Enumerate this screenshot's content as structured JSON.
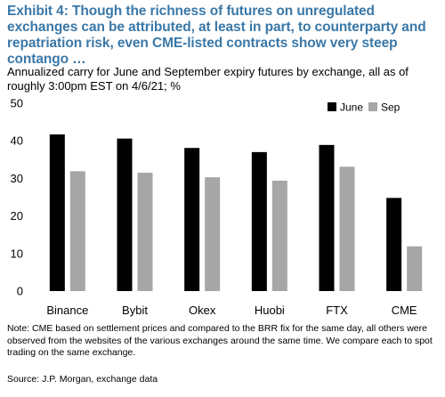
{
  "title": "Exhibit 4: Though the richness of futures on unregulated exchanges can be attributed, at least in part, to counterparty and repatriation risk, even CME-listed contracts show very steep contango …",
  "subtitle": "Annualized carry for June and September expiry futures by exchange, all as of roughly 3:00pm EST on 4/6/21; %",
  "note": "Note: CME based on settlement prices and compared to the BRR fix for the same day, all others were observed from the websites of the various exchanges around the same time.  We compare each to spot trading on the same exchange.",
  "source": "Source: J.P. Morgan, exchange data",
  "colors": {
    "title": "#3a78a8",
    "june": "#000000",
    "sep": "#a6a6a6"
  },
  "chart_data": {
    "type": "bar",
    "categories": [
      "Binance",
      "Bybit",
      "Okex",
      "Huobi",
      "FTX",
      "CME"
    ],
    "series": [
      {
        "name": "June",
        "values": [
          41.7,
          40.6,
          38.1,
          37.0,
          38.9,
          24.8
        ]
      },
      {
        "name": "Sep",
        "values": [
          31.9,
          31.5,
          30.3,
          29.4,
          33.1,
          11.9
        ]
      }
    ],
    "ylim": [
      0,
      50
    ],
    "yticks": [
      0,
      10,
      20,
      30,
      40,
      50
    ],
    "xlabel": "",
    "ylabel": "",
    "grid": false,
    "legend_position": "top-right"
  }
}
